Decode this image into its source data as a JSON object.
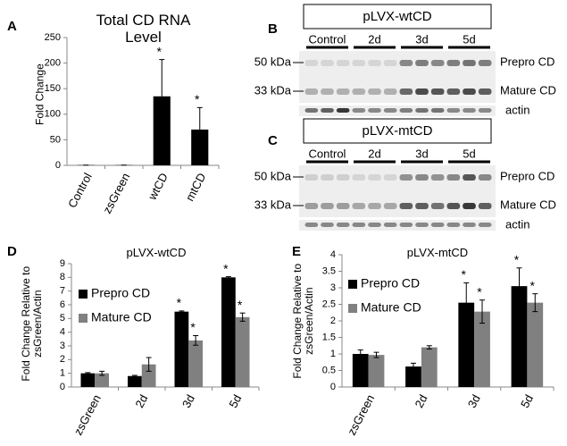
{
  "panels": [
    "A",
    "B",
    "C",
    "D",
    "E"
  ],
  "chart_data": [
    {
      "type": "bar",
      "title": "Total CD RNA Level",
      "y_label": "Fold Change",
      "categories": [
        "Control",
        "zsGreen",
        "wtCD",
        "mtCD"
      ],
      "series": [
        {
          "name": null,
          "color": "#000000",
          "values": [
            0.5,
            0.5,
            135,
            70
          ],
          "errors": [
            0,
            0,
            72,
            43
          ],
          "markers": [
            null,
            null,
            "*",
            "*"
          ]
        }
      ],
      "error_direction": "up",
      "ylim": [
        0,
        250
      ],
      "yticks": [
        0,
        50,
        100,
        150,
        200,
        250
      ]
    },
    {
      "type": "bar",
      "title": "pLVX-wtCD",
      "y_label": "Fold Change Relative to zsGreen/Actin",
      "categories": [
        "zsGreen",
        "2d",
        "3d",
        "5d"
      ],
      "series": [
        {
          "name": "Prepro CD",
          "color": "#000000",
          "values": [
            1,
            0.8,
            5.5,
            8
          ],
          "errors": [
            0.05,
            0.05,
            0.05,
            0.05
          ],
          "markers": [
            null,
            null,
            "*",
            "*"
          ]
        },
        {
          "name": "Mature CD",
          "color": "#808080",
          "values": [
            1,
            1.65,
            3.4,
            5.1
          ],
          "errors": [
            0.15,
            0.5,
            0.35,
            0.3
          ],
          "markers": [
            null,
            null,
            "*",
            "*"
          ]
        }
      ],
      "error_direction": "both",
      "legend": "upper left",
      "ylim": [
        0,
        9
      ],
      "yticks": [
        0,
        1,
        2,
        3,
        4,
        5,
        6,
        7,
        8,
        9
      ]
    },
    {
      "type": "bar",
      "title": "pLVX-mtCD",
      "y_label": "Fold Change Relative to zsGreen/Actin",
      "categories": [
        "zsGreen",
        "2d",
        "3d",
        "5d"
      ],
      "series": [
        {
          "name": "Prepro CD",
          "color": "#000000",
          "values": [
            1,
            0.62,
            2.55,
            3.05
          ],
          "errors": [
            0.12,
            0.1,
            0.6,
            0.55
          ],
          "markers": [
            null,
            null,
            "*",
            "*"
          ]
        },
        {
          "name": "Mature CD",
          "color": "#808080",
          "values": [
            0.97,
            1.2,
            2.28,
            2.55
          ],
          "errors": [
            0.08,
            0.05,
            0.35,
            0.27
          ],
          "markers": [
            null,
            null,
            "*",
            "*"
          ]
        }
      ],
      "error_direction": "both",
      "legend": "upper left",
      "ylim": [
        0,
        4
      ],
      "yticks": [
        0,
        0.5,
        1,
        1.5,
        2,
        2.5,
        3,
        3.5,
        4
      ]
    }
  ],
  "blots": [
    {
      "title": "pLVX-wtCD",
      "groups": [
        "Control",
        "2d",
        "3d",
        "5d"
      ],
      "markers": [
        "50 kDa",
        "33 kDa"
      ],
      "bands": [
        "Prepro CD",
        "Mature CD",
        "actin"
      ]
    },
    {
      "title": "pLVX-mtCD",
      "groups": [
        "Control",
        "2d",
        "3d",
        "5d"
      ],
      "markers": [
        "50 kDa",
        "33 kDa"
      ],
      "bands": [
        "Prepro CD",
        "Mature CD",
        "actin"
      ]
    }
  ]
}
